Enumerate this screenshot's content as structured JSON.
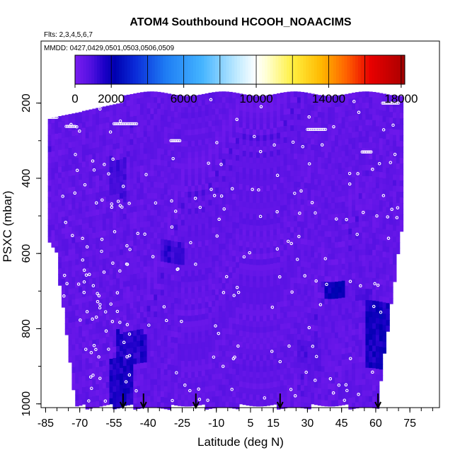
{
  "chart_data": {
    "type": "heatmap",
    "title": "ATOM4 Southbound HCOOH_NOAACIMS",
    "subtitle_flights": "Flts: 2,3,4,5,6,7",
    "subtitle_dates": "MMDD: 0427,0429,0501,0503,0506,0509",
    "xlabel": "Latitude (deg N)",
    "ylabel": "PSXC (mbar)",
    "x_ticks": [
      "-85",
      "-70",
      "-55",
      "-40",
      "-25",
      "-10",
      "5",
      "15",
      "30",
      "45",
      "60",
      "75"
    ],
    "x_tick_values": [
      -85,
      -70,
      -55,
      -40,
      -25,
      -10,
      5,
      15,
      30,
      45,
      60,
      75
    ],
    "y_ticks": [
      "200",
      "400",
      "600",
      "800",
      "1000"
    ],
    "y_tick_values": [
      200,
      400,
      600,
      800,
      1000
    ],
    "xlim": [
      -87,
      88
    ],
    "ylim": [
      1010,
      35
    ],
    "data_extent": {
      "lat": [
        -84,
        71
      ],
      "pres": [
        170,
        1000
      ]
    },
    "colorbar": {
      "ticks": [
        "0",
        "2000",
        "6000",
        "10000",
        "14000",
        "18000"
      ],
      "tick_values": [
        0,
        2000,
        6000,
        10000,
        14000,
        18000
      ],
      "range": [
        0,
        18200
      ],
      "color_stops": [
        [
          "#7a1cf0",
          0
        ],
        [
          "#5010e0",
          900
        ],
        [
          "#1c00c8",
          1600
        ],
        [
          "#0000b0",
          2200
        ],
        [
          "#0a2ad8",
          3300
        ],
        [
          "#1e7cf4",
          5000
        ],
        [
          "#44b4ff",
          7000
        ],
        [
          "#c4ecff",
          9000
        ],
        [
          "#ffffff",
          10000
        ],
        [
          "#ffffd0",
          10600
        ],
        [
          "#fff040",
          12000
        ],
        [
          "#ffb800",
          13600
        ],
        [
          "#ff6000",
          15000
        ],
        [
          "#e80000",
          16300
        ],
        [
          "#b00000",
          18000
        ],
        [
          "#9a0000",
          18200
        ]
      ]
    },
    "background_value": 500,
    "high_regions": [
      {
        "lat": [
          -58,
          -48
        ],
        "pres": [
          870,
          1000
        ],
        "value": 1700
      },
      {
        "lat": [
          -55,
          -42
        ],
        "pres": [
          800,
          880
        ],
        "value": 1500
      },
      {
        "lat": [
          -58,
          -50
        ],
        "pres": [
          340,
          440
        ],
        "value": 1100
      },
      {
        "lat": [
          -35,
          -25
        ],
        "pres": [
          560,
          620
        ],
        "value": 1200
      },
      {
        "lat": [
          37,
          46
        ],
        "pres": [
          665,
          715
        ],
        "value": 2100
      },
      {
        "lat": [
          55,
          66
        ],
        "pres": [
          720,
          900
        ],
        "value": 1800
      },
      {
        "lat": [
          50,
          58
        ],
        "pres": [
          680,
          720
        ],
        "value": 900
      },
      {
        "lat": [
          25,
          35
        ],
        "pres": [
          820,
          900
        ],
        "value": 800
      }
    ],
    "sonde_arrows_lat": [
      -51,
      -42,
      -19,
      18,
      61
    ]
  }
}
